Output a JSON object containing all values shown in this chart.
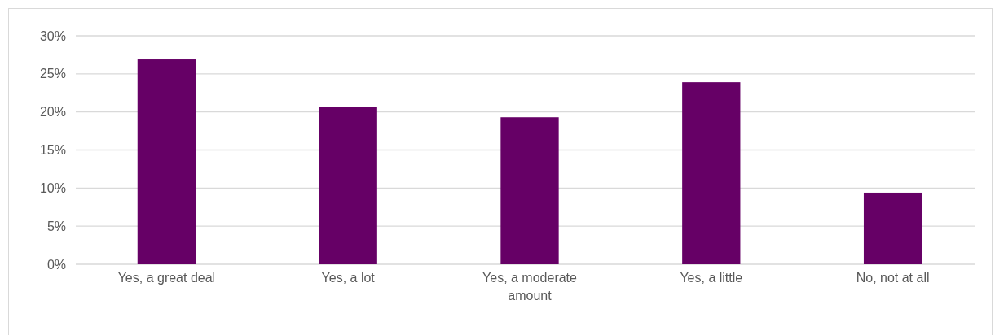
{
  "chart_data": {
    "type": "bar",
    "categories": [
      "Yes, a great deal",
      "Yes, a lot",
      "Yes, a moderate amount",
      "Yes, a little",
      "No, not at all"
    ],
    "values": [
      26.9,
      20.7,
      19.3,
      23.9,
      9.4
    ],
    "color": "#660066",
    "ylim": [
      0,
      30
    ],
    "yticks": [
      {
        "value": 0,
        "label": "0%"
      },
      {
        "value": 5,
        "label": "5%"
      },
      {
        "value": 10,
        "label": "10%"
      },
      {
        "value": 15,
        "label": "15%"
      },
      {
        "value": 20,
        "label": "20%"
      },
      {
        "value": 25,
        "label": "25%"
      },
      {
        "value": 30,
        "label": "30%"
      }
    ],
    "grid": "y"
  }
}
